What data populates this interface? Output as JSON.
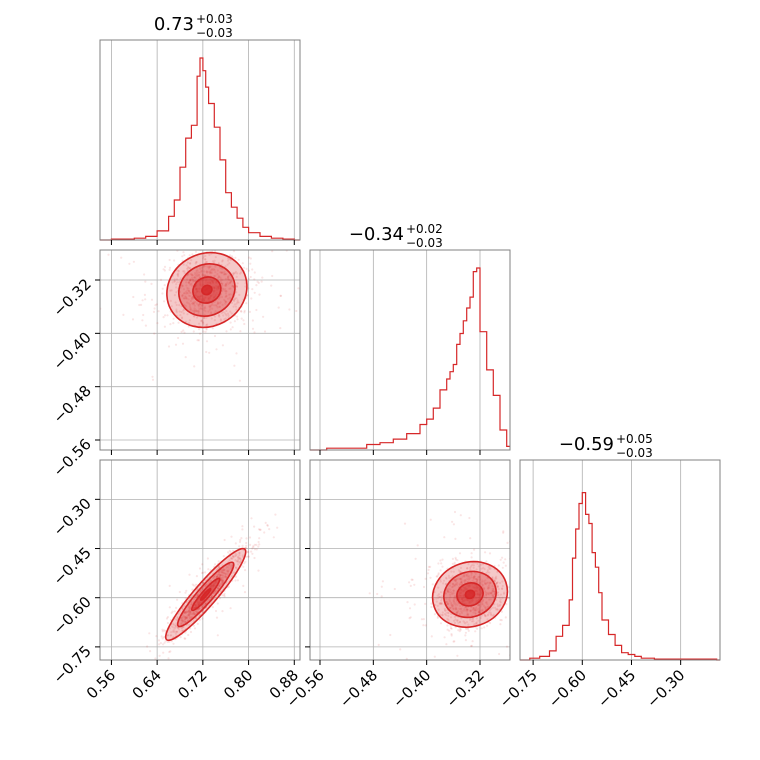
{
  "chart_data": {
    "type": "corner",
    "color": "#d62728",
    "parameters": [
      {
        "index": 0,
        "median": "0.73",
        "upper_err": "+0.03",
        "lower_err": "−0.03",
        "range": [
          0.54,
          0.89
        ],
        "ticks": [
          "0.56",
          "0.64",
          "0.72",
          "0.80",
          "0.88"
        ]
      },
      {
        "index": 1,
        "median": "−0.34",
        "upper_err": "+0.02",
        "lower_err": "−0.03",
        "range": [
          -0.575,
          -0.275
        ],
        "ticks": [
          "−0.56",
          "−0.48",
          "−0.40",
          "−0.32"
        ]
      },
      {
        "index": 2,
        "median": "−0.59",
        "upper_err": "+0.05",
        "lower_err": "−0.03",
        "range": [
          -0.79,
          -0.18
        ],
        "ticks": [
          "−0.75",
          "−0.60",
          "−0.45",
          "−0.30"
        ]
      }
    ],
    "grid": true,
    "histograms": [
      {
        "param": 0,
        "values": [
          0.54,
          0.56,
          0.58,
          0.6,
          0.62,
          0.64,
          0.66,
          0.67,
          0.68,
          0.69,
          0.7,
          0.71,
          0.715,
          0.72,
          0.725,
          0.73,
          0.74,
          0.75,
          0.76,
          0.77,
          0.78,
          0.79,
          0.8,
          0.82,
          0.84,
          0.86,
          0.88
        ],
        "heights": [
          0.0,
          0.005,
          0.005,
          0.01,
          0.02,
          0.05,
          0.13,
          0.22,
          0.4,
          0.56,
          0.63,
          0.9,
          1.0,
          0.93,
          0.84,
          0.75,
          0.62,
          0.44,
          0.26,
          0.18,
          0.12,
          0.07,
          0.04,
          0.02,
          0.01,
          0.005,
          0.0
        ]
      },
      {
        "param": 1,
        "values": [
          -0.575,
          -0.55,
          -0.52,
          -0.49,
          -0.47,
          -0.45,
          -0.43,
          -0.41,
          -0.4,
          -0.39,
          -0.38,
          -0.37,
          -0.365,
          -0.36,
          -0.355,
          -0.35,
          -0.345,
          -0.34,
          -0.335,
          -0.33,
          -0.325,
          -0.32,
          -0.31,
          -0.3,
          -0.29,
          -0.28
        ],
        "heights": [
          0.0,
          0.01,
          0.01,
          0.03,
          0.04,
          0.06,
          0.09,
          0.14,
          0.17,
          0.23,
          0.33,
          0.39,
          0.43,
          0.47,
          0.58,
          0.64,
          0.71,
          0.78,
          0.84,
          0.98,
          1.0,
          0.65,
          0.44,
          0.3,
          0.11,
          0.02
        ]
      },
      {
        "param": 2,
        "values": [
          -0.79,
          -0.76,
          -0.73,
          -0.7,
          -0.68,
          -0.66,
          -0.64,
          -0.63,
          -0.62,
          -0.61,
          -0.6,
          -0.59,
          -0.58,
          -0.57,
          -0.56,
          -0.55,
          -0.54,
          -0.52,
          -0.5,
          -0.48,
          -0.46,
          -0.44,
          -0.42,
          -0.38,
          -0.33,
          -0.26,
          -0.19
        ],
        "heights": [
          0.0,
          0.01,
          0.02,
          0.05,
          0.13,
          0.19,
          0.33,
          0.56,
          0.72,
          0.86,
          0.92,
          0.8,
          0.75,
          0.59,
          0.51,
          0.37,
          0.22,
          0.14,
          0.08,
          0.04,
          0.03,
          0.02,
          0.01,
          0.005,
          0.005,
          0.005,
          0.0
        ]
      }
    ],
    "pairs": [
      {
        "x_param": 0,
        "y_param": 1,
        "center": [
          0.727,
          -0.335
        ],
        "sx": 0.035,
        "sy": 0.028,
        "rho": 0.1
      },
      {
        "x_param": 0,
        "y_param": 2,
        "center": [
          0.725,
          -0.59
        ],
        "sx": 0.035,
        "sy": 0.07,
        "rho": 0.93
      },
      {
        "x_param": 1,
        "y_param": 2,
        "center": [
          -0.335,
          -0.59
        ],
        "sx": 0.028,
        "sy": 0.05,
        "rho": 0.1
      }
    ]
  }
}
